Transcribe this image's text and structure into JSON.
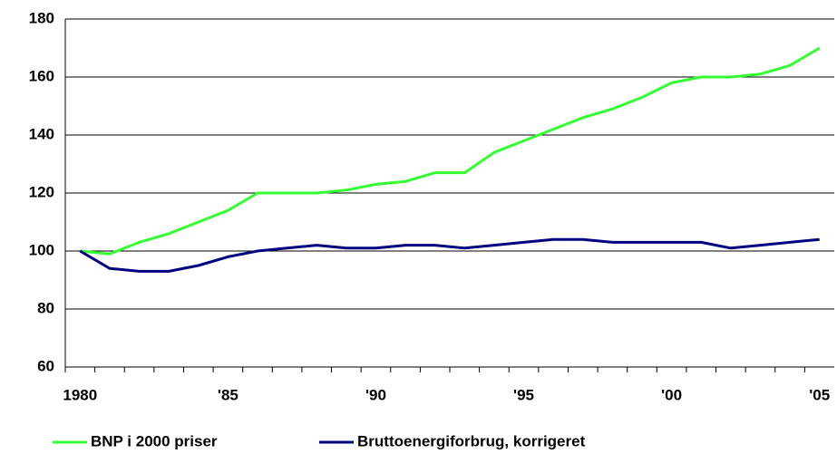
{
  "chart_data": {
    "type": "line",
    "categories": [
      "1980",
      null,
      null,
      null,
      null,
      "'85",
      null,
      null,
      null,
      null,
      "'90",
      null,
      null,
      null,
      null,
      "'95",
      null,
      null,
      null,
      null,
      "'00",
      null,
      null,
      null,
      null,
      "'05"
    ],
    "series": [
      {
        "name": "BNP i 2000 priser",
        "color": "#33ff33",
        "values": [
          100,
          99,
          103,
          106,
          110,
          114,
          120,
          120,
          120,
          121,
          123,
          124,
          127,
          127,
          134,
          138,
          142,
          146,
          149,
          153,
          158,
          160,
          160,
          161,
          164,
          170
        ]
      },
      {
        "name": "Bruttoenergiforbrug, korrigeret",
        "color": "#000080",
        "values": [
          100,
          94,
          93,
          93,
          95,
          98,
          100,
          101,
          102,
          101,
          101,
          102,
          102,
          101,
          102,
          103,
          104,
          104,
          103,
          103,
          103,
          103,
          101,
          102,
          103,
          104
        ]
      }
    ],
    "ylim": [
      60,
      180
    ],
    "yticks": [
      60,
      80,
      100,
      120,
      140,
      160,
      180
    ],
    "grid": true,
    "legend": "bottom"
  }
}
